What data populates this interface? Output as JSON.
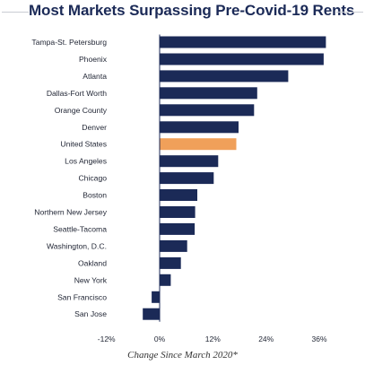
{
  "title": "Most Markets Surpassing Pre-Covid-19 Rents",
  "colors": {
    "bar": "#1b2a57",
    "highlight": "#f0a05a",
    "title": "#1b2a57"
  },
  "chart_data": {
    "type": "bar",
    "orientation": "horizontal",
    "title": "Most Markets Surpassing Pre-Covid-19 Rents",
    "xlabel": "Change Since March 2020*",
    "ylabel": "",
    "xlim": [
      -12,
      36
    ],
    "ticks": [
      -12,
      0,
      12,
      24,
      36
    ],
    "tick_labels": [
      "-12%",
      "0%",
      "12%",
      "24%",
      "36%"
    ],
    "grid": false,
    "legend": "none",
    "categories": [
      "Tampa-St. Petersburg",
      "Phoenix",
      "Atlanta",
      "Dallas-Fort Worth",
      "Orange County",
      "Denver",
      "United States",
      "Los Angeles",
      "Chicago",
      "Boston",
      "Northern New Jersey",
      "Seattle-Tacoma",
      "Washington, D.C.",
      "Oakland",
      "New York",
      "San Francisco",
      "San Jose"
    ],
    "values": [
      37.5,
      37.0,
      29.0,
      22.0,
      21.3,
      17.8,
      17.3,
      13.2,
      12.2,
      8.5,
      8.0,
      7.9,
      6.2,
      4.8,
      2.5,
      -1.8,
      -3.8
    ],
    "highlight": "United States"
  }
}
